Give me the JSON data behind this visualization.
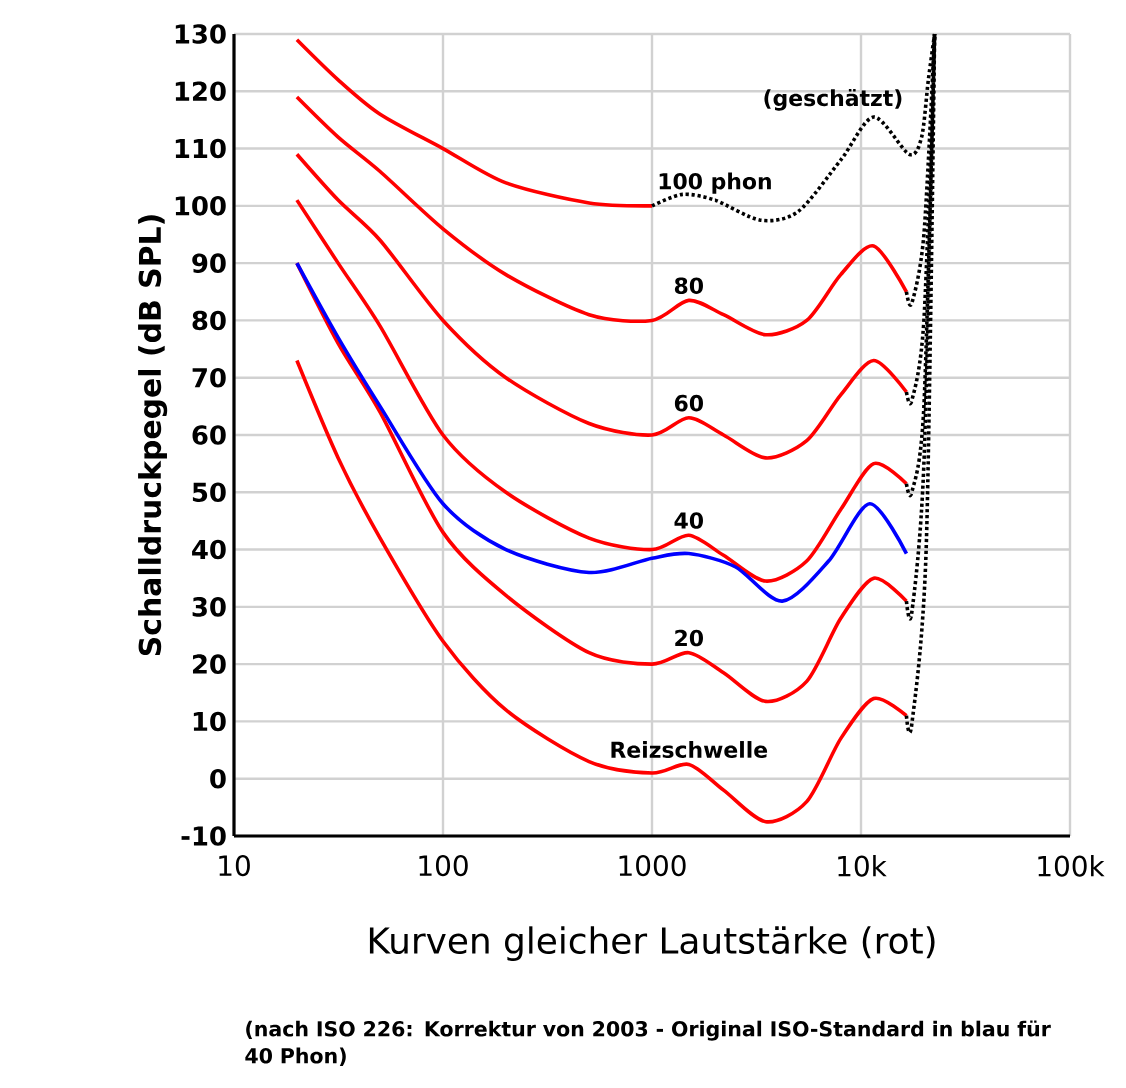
{
  "chart_data": {
    "type": "line",
    "xlabel": "Kurven gleicher Lautstärke (rot)",
    "ylabel": "Schalldruckpegel (dB SPL)",
    "log": "x",
    "grid": true,
    "line_style": "solid",
    "xlim": [
      10,
      100000
    ],
    "ylim": [
      -10,
      130
    ],
    "xticks": [
      10,
      100,
      1000,
      {
        "value": 10000,
        "label": "10k"
      },
      {
        "value": 100000,
        "label": "100k"
      }
    ],
    "yticks": [
      -10,
      0,
      10,
      20,
      30,
      40,
      50,
      60,
      70,
      80,
      90,
      100,
      110,
      120,
      130
    ],
    "series": [
      {
        "color": "#ff0000",
        "x": [
          20,
          31.5,
          50,
          100,
          200,
          500,
          1000
        ],
        "values": [
          129,
          122,
          116,
          110,
          104,
          100.5,
          100
        ]
      },
      {
        "color": "#000000",
        "line_style": "dotted",
        "x": [
          1000,
          1400,
          2000,
          3300,
          5000,
          8000,
          11500,
          17000,
          19500,
          21000,
          22500
        ],
        "values": [
          100,
          102,
          101,
          97.5,
          99,
          108,
          115.5,
          109,
          112,
          122,
          130
        ]
      },
      {
        "color": "#ff0000",
        "x": [
          20,
          31.5,
          50,
          100,
          200,
          500,
          1000,
          1500,
          2200,
          3500,
          5500,
          8000,
          11500,
          16500
        ],
        "values": [
          119,
          112,
          106,
          96,
          88,
          81,
          80,
          83.5,
          81,
          77.5,
          80,
          88,
          93,
          85
        ]
      },
      {
        "color": "#ff0000",
        "x": [
          20,
          31.5,
          50,
          100,
          200,
          500,
          1000,
          1500,
          2200,
          3500,
          5500,
          8000,
          11500,
          16500
        ],
        "values": [
          109,
          101,
          94,
          80,
          70,
          62,
          60,
          63,
          60,
          56,
          59,
          67,
          73,
          67.5
        ]
      },
      {
        "color": "#ff0000",
        "x": [
          20,
          31.5,
          50,
          100,
          200,
          500,
          1000,
          1500,
          2200,
          3500,
          5500,
          8000,
          11500,
          16500
        ],
        "values": [
          101,
          90,
          79,
          60,
          50,
          42,
          40,
          42.5,
          39,
          34.5,
          38,
          47,
          55,
          51.5
        ]
      },
      {
        "color": "#ff0000",
        "x": [
          20,
          31.5,
          50,
          100,
          200,
          500,
          1000,
          1500,
          2200,
          3500,
          5500,
          8000,
          11500,
          16500
        ],
        "values": [
          90,
          76,
          64,
          43,
          32,
          22,
          20,
          22,
          18.5,
          13.5,
          17,
          28,
          35,
          31
        ]
      },
      {
        "color": "#ff0000",
        "x": [
          20,
          31.5,
          50,
          100,
          200,
          500,
          1000,
          1500,
          2200,
          3500,
          5500,
          8000,
          11500,
          16500
        ],
        "values": [
          73,
          56,
          42,
          24,
          12,
          3,
          1,
          2.5,
          -2,
          -7.5,
          -4,
          7,
          14,
          11
        ]
      },
      {
        "color": "#0000ff",
        "x": [
          20,
          31.5,
          50,
          100,
          200,
          500,
          1000,
          1500,
          2500,
          4200,
          7000,
          11000,
          16500
        ],
        "values": [
          90,
          77,
          65,
          48,
          40,
          36,
          38.5,
          39.3,
          37,
          31,
          38,
          48,
          39.3
        ]
      },
      {
        "color": "#000000",
        "line_style": "dotted",
        "x": [
          16500,
          17500,
          20000,
          22500
        ],
        "values": [
          85,
          83,
          95,
          130
        ]
      },
      {
        "color": "#000000",
        "line_style": "dotted",
        "x": [
          16500,
          17500,
          20000,
          22500
        ],
        "values": [
          67.5,
          66,
          80,
          130
        ]
      },
      {
        "color": "#000000",
        "line_style": "dotted",
        "x": [
          16500,
          17500,
          20000,
          22500
        ],
        "values": [
          51.5,
          50,
          65,
          130
        ]
      },
      {
        "color": "#000000",
        "line_style": "dotted",
        "x": [
          16500,
          17500,
          20000,
          22500
        ],
        "values": [
          31,
          29,
          55,
          130
        ]
      },
      {
        "color": "#000000",
        "line_style": "dotted",
        "x": [
          16500,
          17500,
          20500,
          22500
        ],
        "values": [
          11,
          9.5,
          40,
          130
        ]
      }
    ],
    "annotations": [
      {
        "text": "(geschätzt)",
        "x": 11500,
        "y": 115.5
      },
      {
        "text": "100 phon",
        "x": 2000,
        "y": 101
      },
      {
        "text": "80",
        "x": 1500,
        "y": 83.5
      },
      {
        "text": "60",
        "x": 1500,
        "y": 63
      },
      {
        "text": "40",
        "x": 1500,
        "y": 42.5
      },
      {
        "text": "20",
        "x": 1500,
        "y": 22
      },
      {
        "text": "Reizschwelle",
        "x": 1500,
        "y": 2.5
      },
      "(nach ISO 226: Korrektur von 2003 - Original ISO-Standard in blau für 40 Phon)"
    ]
  }
}
